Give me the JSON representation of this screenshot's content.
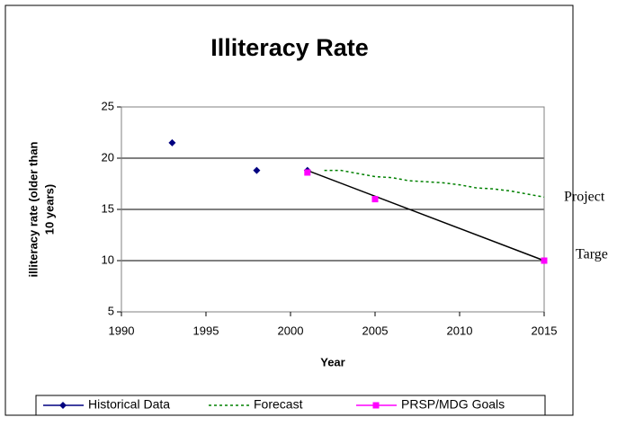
{
  "chart_data": {
    "type": "line",
    "title": "Illiteracy Rate",
    "x_label": "Year",
    "y_label": [
      "illiteracy rate (older than",
      "10 years)"
    ],
    "xlim": [
      1990,
      2015
    ],
    "xticks": [
      1990,
      1995,
      2000,
      2005,
      2010,
      2015
    ],
    "ylim": [
      5,
      25
    ],
    "yticks": [
      5,
      10,
      15,
      20,
      25
    ],
    "grid": true,
    "legend": "bottom",
    "series": [
      {
        "name": "Historical Data",
        "color": "#000080",
        "marker": "diamond",
        "line": "none",
        "x": [
          1993,
          1998,
          2001
        ],
        "values": [
          21.5,
          18.8,
          18.8
        ]
      },
      {
        "name": "Forecast",
        "color": "#008000",
        "marker": "none",
        "line": "dotted",
        "x": [
          2002,
          2003,
          2004,
          2005,
          2006,
          2007,
          2008,
          2009,
          2010,
          2011,
          2012,
          2013,
          2014,
          2015
        ],
        "values": [
          18.8,
          18.8,
          18.5,
          18.2,
          18.1,
          17.8,
          17.7,
          17.6,
          17.4,
          17.1,
          17.0,
          16.8,
          16.5,
          16.2
        ]
      },
      {
        "name": "PRSP/MDG Goals",
        "color": "#ff00ff",
        "marker": "square",
        "line": "none",
        "x": [
          2001,
          2005,
          2015
        ],
        "values": [
          18.6,
          16,
          10
        ]
      }
    ],
    "trend": {
      "color": "#000000",
      "x": [
        2001,
        2015
      ],
      "values": [
        18.8,
        10
      ]
    },
    "annotations": [
      "Project",
      "Targe"
    ]
  }
}
